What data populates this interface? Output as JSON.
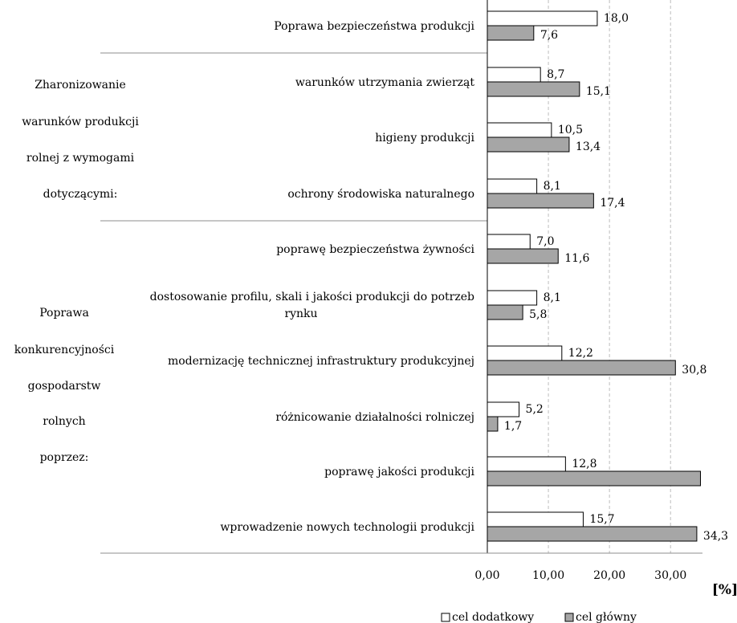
{
  "chart_data": {
    "type": "bar",
    "orientation": "horizontal",
    "unit_label": "[%]",
    "categories": [
      "Poprawa bezpieczeństwa produkcji",
      "warunków utrzymania zwierząt",
      "higieny produkcji",
      "ochrony środowiska naturalnego",
      "poprawę bezpieczeństwa żywności",
      "dostosowanie profilu, skali i jakości produkcji do potrzeb rynku",
      "modernizację technicznej infrastruktury produkcyjnej",
      "różnicowanie działalności rolniczej",
      "poprawę jakości produkcji",
      "wprowadzenie nowych technologii produkcji"
    ],
    "category_lines": [
      [
        "Poprawa bezpieczeństwa produkcji"
      ],
      [
        "warunków utrzymania zwierząt"
      ],
      [
        "higieny produkcji"
      ],
      [
        "ochrony środowiska naturalnego"
      ],
      [
        "poprawę bezpieczeństwa żywności"
      ],
      [
        "dostosowanie profilu, skali i jakości produkcji do potrzeb",
        "rynku"
      ],
      [
        "modernizację technicznej infrastruktury produkcyjnej"
      ],
      [
        "różnicowanie działalności rolniczej"
      ],
      [
        "poprawę jakości produkcji"
      ],
      [
        "wprowadzenie nowych technologii produkcji"
      ]
    ],
    "groups": [
      {
        "lines": [
          "Zharonizowanie",
          "warunków produkcji",
          "rolnej z wymogami",
          "dotyczącymi:"
        ],
        "categories": [
          1,
          2,
          3
        ]
      },
      {
        "lines": [
          "Poprawa",
          "konkurencyjności",
          "gospodarstw",
          "rolnych",
          "poprzez:"
        ],
        "categories": [
          4,
          5,
          6,
          7,
          8,
          9
        ]
      }
    ],
    "series": [
      {
        "name": "cel dodatkowy",
        "color": "#ffffff",
        "values": [
          18.0,
          8.7,
          10.5,
          8.1,
          7.0,
          8.1,
          12.2,
          5.2,
          12.8,
          15.7
        ],
        "labels": [
          "18,0",
          "8,7",
          "10,5",
          "8,1",
          "7,0",
          "8,1",
          "12,2",
          "5,2",
          "12,8",
          "15,7"
        ]
      },
      {
        "name": "cel główny",
        "color": "#a6a6a6",
        "values": [
          7.6,
          15.1,
          13.4,
          17.4,
          11.6,
          5.8,
          30.8,
          1.7,
          34.9,
          34.3
        ],
        "labels": [
          "7,6",
          "15,1",
          "13,4",
          "17,4",
          "11,6",
          "5,8",
          "30,8",
          "1,7",
          "",
          "34,3"
        ]
      }
    ],
    "xlim": [
      0,
      35
    ],
    "xticks": [
      0,
      10,
      20,
      30
    ],
    "xtick_labels": [
      "0,00",
      "10,00",
      "20,00",
      "30,00"
    ],
    "grid": "vertical dashed",
    "legend_position": "bottom-right"
  }
}
